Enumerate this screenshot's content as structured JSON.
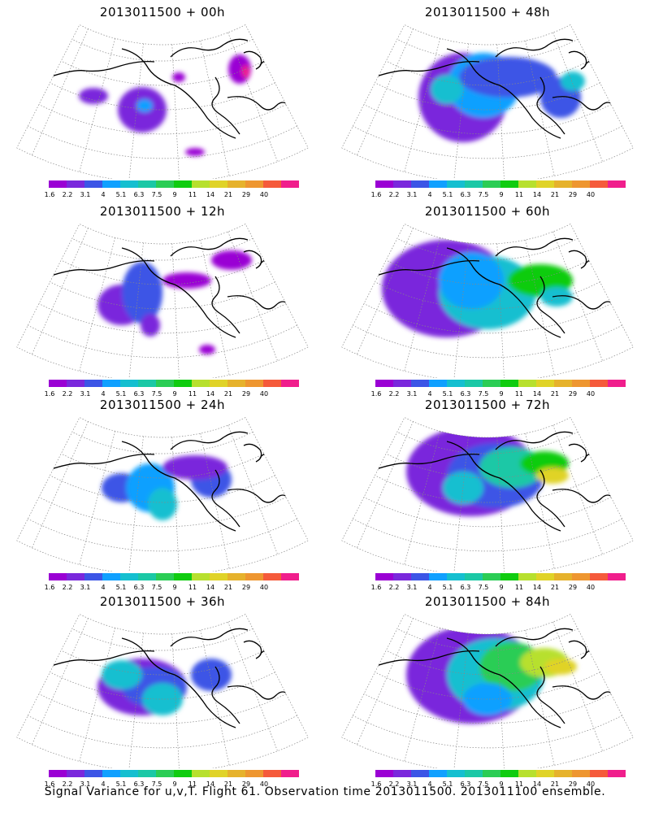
{
  "panels": [
    {
      "title": "2013011500 + 00h",
      "spread": "low"
    },
    {
      "title": "2013011500 + 48h",
      "spread": "mid"
    },
    {
      "title": "2013011500 + 12h",
      "spread": "low"
    },
    {
      "title": "2013011500 + 60h",
      "spread": "mid-high"
    },
    {
      "title": "2013011500 + 24h",
      "spread": "low-mid"
    },
    {
      "title": "2013011500 + 72h",
      "spread": "high"
    },
    {
      "title": "2013011500 + 36h",
      "spread": "mid"
    },
    {
      "title": "2013011500 + 84h",
      "spread": "high"
    }
  ],
  "colorbar": {
    "labels": [
      "1.6",
      "2.2",
      "3.1",
      "4",
      "5.1",
      "6.3",
      "7.5",
      "9",
      "11",
      "14",
      "21",
      "29",
      "40"
    ],
    "colors": [
      "#9a00d4",
      "#7a28dc",
      "#3c55e6",
      "#10a0ff",
      "#15bfd0",
      "#1bc8a6",
      "#2bcd55",
      "#10cc10",
      "#b7e02e",
      "#e0d328",
      "#e6b22c",
      "#ee9630",
      "#f55a3b",
      "#f01e8c"
    ]
  },
  "footer": "Signal Variance for u,v,T. Flight 61. Observation time 2013011500. 2013011100 ensemble."
}
